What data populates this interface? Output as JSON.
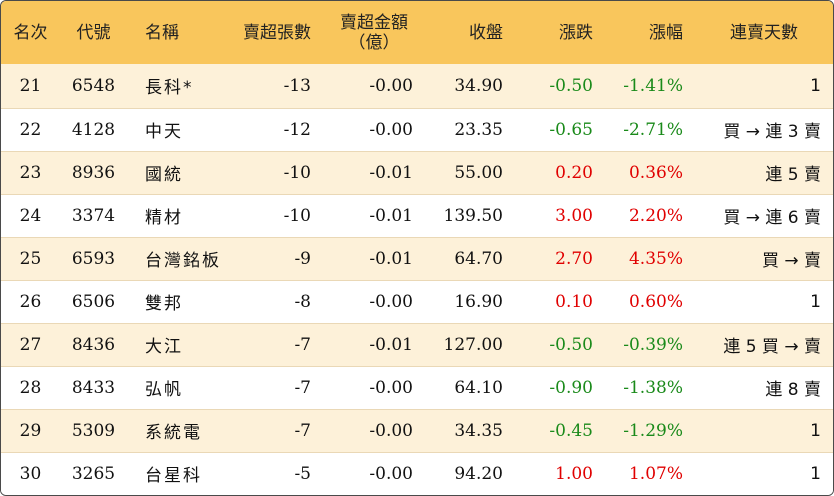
{
  "headers": {
    "rank": "名次",
    "code": "代號",
    "name": "名稱",
    "net_lots": "賣超張數",
    "net_amount_line1": "賣超金額",
    "net_amount_line2": "（億）",
    "close": "收盤",
    "change": "漲跌",
    "pct": "漲幅",
    "streak": "連賣天數"
  },
  "rows": [
    {
      "rank": "21",
      "code": "6548",
      "name": "長科*",
      "net_lots": "-13",
      "net_amount": "-0.00",
      "close": "34.90",
      "change": "-0.50",
      "pct": "-1.41%",
      "dir": "down",
      "streak": "1"
    },
    {
      "rank": "22",
      "code": "4128",
      "name": "中天",
      "net_lots": "-12",
      "net_amount": "-0.00",
      "close": "23.35",
      "change": "-0.65",
      "pct": "-2.71%",
      "dir": "down",
      "streak": "買 → 連 3 賣"
    },
    {
      "rank": "23",
      "code": "8936",
      "name": "國統",
      "net_lots": "-10",
      "net_amount": "-0.01",
      "close": "55.00",
      "change": "0.20",
      "pct": "0.36%",
      "dir": "up",
      "streak": "連 5 賣"
    },
    {
      "rank": "24",
      "code": "3374",
      "name": "精材",
      "net_lots": "-10",
      "net_amount": "-0.01",
      "close": "139.50",
      "change": "3.00",
      "pct": "2.20%",
      "dir": "up",
      "streak": "買 → 連 6 賣"
    },
    {
      "rank": "25",
      "code": "6593",
      "name": "台灣銘板",
      "net_lots": "-9",
      "net_amount": "-0.01",
      "close": "64.70",
      "change": "2.70",
      "pct": "4.35%",
      "dir": "up",
      "streak": "買 → 賣"
    },
    {
      "rank": "26",
      "code": "6506",
      "name": "雙邦",
      "net_lots": "-8",
      "net_amount": "-0.00",
      "close": "16.90",
      "change": "0.10",
      "pct": "0.60%",
      "dir": "up",
      "streak": "1"
    },
    {
      "rank": "27",
      "code": "8436",
      "name": "大江",
      "net_lots": "-7",
      "net_amount": "-0.01",
      "close": "127.00",
      "change": "-0.50",
      "pct": "-0.39%",
      "dir": "down",
      "streak": "連 5 買 → 賣"
    },
    {
      "rank": "28",
      "code": "8433",
      "name": "弘帆",
      "net_lots": "-7",
      "net_amount": "-0.00",
      "close": "64.10",
      "change": "-0.90",
      "pct": "-1.38%",
      "dir": "down",
      "streak": "連 8 賣"
    },
    {
      "rank": "29",
      "code": "5309",
      "name": "系統電",
      "net_lots": "-7",
      "net_amount": "-0.00",
      "close": "34.35",
      "change": "-0.45",
      "pct": "-1.29%",
      "dir": "down",
      "streak": "1"
    },
    {
      "rank": "30",
      "code": "3265",
      "name": "台星科",
      "net_lots": "-5",
      "net_amount": "-0.00",
      "close": "94.20",
      "change": "1.00",
      "pct": "1.07%",
      "dir": "up",
      "streak": "1"
    }
  ],
  "colors": {
    "header_bg": "#f9c65c",
    "odd_row_bg": "#fdf1d9",
    "up": "#e00000",
    "down": "#1a8a1a"
  }
}
